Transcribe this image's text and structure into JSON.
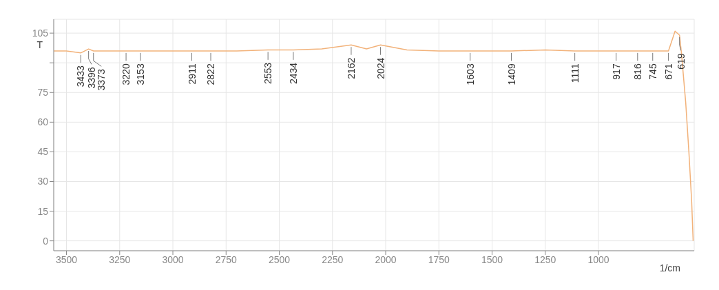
{
  "chart_data": {
    "type": "line",
    "xlabel": "1/cm",
    "ylabel": "T",
    "x": [
      3560,
      3500,
      3433,
      3396,
      3373,
      3300,
      3220,
      3153,
      3000,
      2911,
      2822,
      2700,
      2553,
      2434,
      2300,
      2162,
      2090,
      2024,
      1900,
      1750,
      1603,
      1500,
      1409,
      1250,
      1111,
      1000,
      917,
      816,
      745,
      671,
      640,
      619,
      610,
      590,
      575,
      562,
      555
    ],
    "series": [
      {
        "color": "#f2b27a",
        "values": [
          96,
          96,
          95,
          97,
          96,
          96,
          96,
          96,
          96,
          96,
          96,
          96,
          96.5,
          96.5,
          97,
          99,
          97,
          99,
          96.5,
          96,
          96,
          96,
          96,
          96.5,
          96,
          96,
          96,
          96,
          96,
          96,
          106,
          104,
          95,
          70,
          45,
          20,
          0
        ]
      }
    ],
    "xlim": [
      3560,
      550
    ],
    "xticks": [
      3500,
      3250,
      3000,
      2750,
      2500,
      2250,
      2000,
      1750,
      1500,
      1250,
      1000
    ],
    "ylim": [
      -5,
      112
    ],
    "yticks": [
      0,
      15,
      30,
      45,
      60,
      75,
      {
        "value": 90,
        "label": null
      },
      105
    ],
    "grid": true,
    "marker": "none",
    "line_style": "solid",
    "annotations": [
      {
        "text": "3433",
        "x": 3433,
        "y": 95
      },
      {
        "text": "3396",
        "x": 3396,
        "y": 97
      },
      {
        "text": "3373",
        "x": 3373,
        "y": 96
      },
      {
        "text": "3220",
        "x": 3220,
        "y": 96
      },
      {
        "text": "3153",
        "x": 3153,
        "y": 96
      },
      {
        "text": "2911",
        "x": 2911,
        "y": 96
      },
      {
        "text": "2822",
        "x": 2822,
        "y": 96
      },
      {
        "text": "2553",
        "x": 2553,
        "y": 96.5
      },
      {
        "text": "2434",
        "x": 2434,
        "y": 96.5
      },
      {
        "text": "2162",
        "x": 2162,
        "y": 99
      },
      {
        "text": "2024",
        "x": 2024,
        "y": 99
      },
      {
        "text": "1603",
        "x": 1603,
        "y": 96
      },
      {
        "text": "1409",
        "x": 1409,
        "y": 96
      },
      {
        "text": "1111",
        "x": 1111,
        "y": 96
      },
      {
        "text": "917",
        "x": 917,
        "y": 96
      },
      {
        "text": "816",
        "x": 816,
        "y": 96
      },
      {
        "text": "745",
        "x": 745,
        "y": 96
      },
      {
        "text": "671",
        "x": 671,
        "y": 96
      },
      {
        "text": "619",
        "x": 619,
        "y": 104
      }
    ]
  }
}
